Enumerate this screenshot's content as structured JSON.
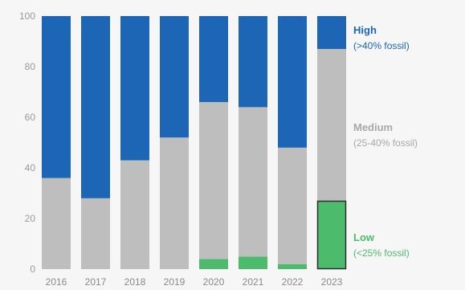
{
  "chart_data": {
    "type": "bar",
    "stacked": true,
    "categories": [
      "2016",
      "2017",
      "2018",
      "2019",
      "2020",
      "2021",
      "2022",
      "2023"
    ],
    "ylim": [
      0,
      100
    ],
    "yticks": [
      0,
      20,
      40,
      60,
      80,
      100
    ],
    "grid": false,
    "highlight_category": "2023",
    "series": [
      {
        "name": "Low",
        "description": "(<25% fossil)",
        "color": "#4dbb6c",
        "values": [
          0,
          0,
          0,
          0,
          4,
          5,
          2,
          27
        ]
      },
      {
        "name": "Medium",
        "description": "(25-40% fossil)",
        "color": "#bebebe",
        "values": [
          36,
          28,
          43,
          52,
          62,
          59,
          46,
          60
        ]
      },
      {
        "name": "High",
        "description": "(>40% fossil)",
        "color": "#1c66b5",
        "values": [
          64,
          72,
          57,
          48,
          34,
          36,
          52,
          13
        ]
      }
    ],
    "legend_position": "right"
  }
}
